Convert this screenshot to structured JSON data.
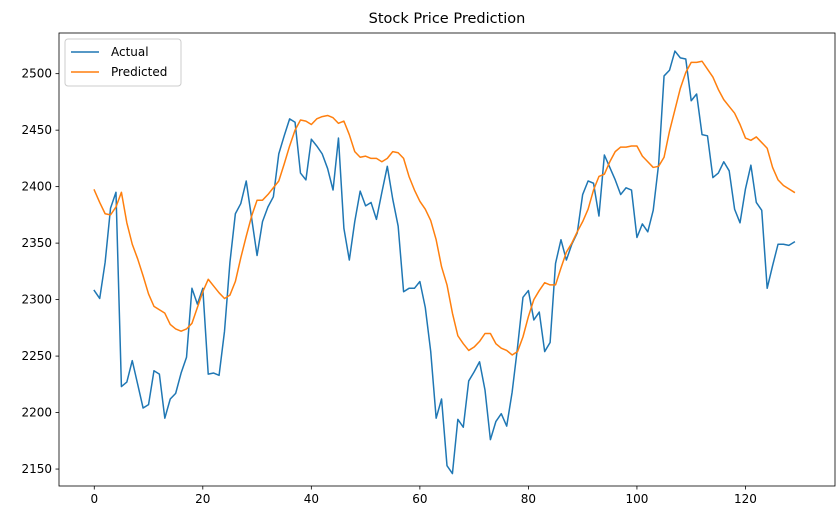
{
  "chart_data": {
    "type": "line",
    "title": "Stock Price Prediction",
    "xlabel": "",
    "ylabel": "",
    "xlim": [
      -6.5,
      136.5
    ],
    "ylim": [
      2135,
      2536
    ],
    "xticks": [
      0,
      20,
      40,
      60,
      80,
      100,
      120
    ],
    "yticks": [
      2150,
      2200,
      2250,
      2300,
      2350,
      2400,
      2450,
      2500
    ],
    "grid": false,
    "legend_position": "top-left",
    "series": [
      {
        "name": "Actual",
        "color": "#1f77b4",
        "x": [
          0,
          1,
          2,
          3,
          4,
          5,
          6,
          7,
          8,
          9,
          10,
          11,
          12,
          13,
          14,
          15,
          16,
          17,
          18,
          19,
          20,
          21,
          22,
          23,
          24,
          25,
          26,
          27,
          28,
          29,
          30,
          31,
          32,
          33,
          34,
          35,
          36,
          37,
          38,
          39,
          40,
          41,
          42,
          43,
          44,
          45,
          46,
          47,
          48,
          49,
          50,
          51,
          52,
          53,
          54,
          55,
          56,
          57,
          58,
          59,
          60,
          61,
          62,
          63,
          64,
          65,
          66,
          67,
          68,
          69,
          70,
          71,
          72,
          73,
          74,
          75,
          76,
          77,
          78,
          79,
          80,
          81,
          82,
          83,
          84,
          85,
          86,
          87,
          88,
          89,
          90,
          91,
          92,
          93,
          94,
          95,
          96,
          97,
          98,
          99,
          100,
          101,
          102,
          103,
          104,
          105,
          106,
          107,
          108,
          109,
          110,
          111,
          112,
          113,
          114,
          115,
          116,
          117,
          118,
          119,
          120,
          121,
          122,
          123,
          124,
          125,
          126,
          127,
          128,
          129
        ],
        "values": [
          2308,
          2301,
          2333,
          2381,
          2395,
          2223,
          2227,
          2246,
          2225,
          2204,
          2207,
          2237,
          2234,
          2195,
          2212,
          2217,
          2235,
          2249,
          2310,
          2296,
          2310,
          2234,
          2235,
          2233,
          2272,
          2333,
          2376,
          2385,
          2405,
          2372,
          2339,
          2369,
          2382,
          2391,
          2429,
          2445,
          2460,
          2457,
          2412,
          2406,
          2442,
          2436,
          2429,
          2416,
          2397,
          2443,
          2363,
          2335,
          2369,
          2396,
          2383,
          2386,
          2371,
          2395,
          2418,
          2389,
          2365,
          2307,
          2310,
          2310,
          2316,
          2293,
          2254,
          2195,
          2212,
          2153,
          2146,
          2194,
          2187,
          2228,
          2236,
          2245,
          2220,
          2176,
          2192,
          2199,
          2188,
          2218,
          2258,
          2302,
          2308,
          2282,
          2289,
          2254,
          2262,
          2332,
          2353,
          2335,
          2349,
          2359,
          2393,
          2405,
          2403,
          2374,
          2428,
          2417,
          2406,
          2393,
          2399,
          2397,
          2355,
          2367,
          2360,
          2379,
          2420,
          2498,
          2503,
          2520,
          2514,
          2513,
          2476,
          2482,
          2446,
          2445,
          2408,
          2412,
          2422,
          2414,
          2380,
          2368,
          2398,
          2419,
          2386,
          2379,
          2310,
          2330,
          2349,
          2349,
          2348,
          2351
        ]
      },
      {
        "name": "Predicted",
        "color": "#ff7f0e",
        "x": [
          0,
          1,
          2,
          3,
          4,
          5,
          6,
          7,
          8,
          9,
          10,
          11,
          12,
          13,
          14,
          15,
          16,
          17,
          18,
          19,
          20,
          21,
          22,
          23,
          24,
          25,
          26,
          27,
          28,
          29,
          30,
          31,
          32,
          33,
          34,
          35,
          36,
          37,
          38,
          39,
          40,
          41,
          42,
          43,
          44,
          45,
          46,
          47,
          48,
          49,
          50,
          51,
          52,
          53,
          54,
          55,
          56,
          57,
          58,
          59,
          60,
          61,
          62,
          63,
          64,
          65,
          66,
          67,
          68,
          69,
          70,
          71,
          72,
          73,
          74,
          75,
          76,
          77,
          78,
          79,
          80,
          81,
          82,
          83,
          84,
          85,
          86,
          87,
          88,
          89,
          90,
          91,
          92,
          93,
          94,
          95,
          96,
          97,
          98,
          99,
          100,
          101,
          102,
          103,
          104,
          105,
          106,
          107,
          108,
          109,
          110,
          111,
          112,
          113,
          114,
          115,
          116,
          117,
          118,
          119,
          120,
          121,
          122,
          123,
          124,
          125,
          126,
          127,
          128,
          129
        ],
        "values": [
          2397,
          2386,
          2376,
          2375,
          2382,
          2395,
          2368,
          2349,
          2336,
          2321,
          2305,
          2294,
          2291,
          2288,
          2278,
          2274,
          2272,
          2274,
          2279,
          2293,
          2307,
          2318,
          2312,
          2306,
          2301,
          2304,
          2316,
          2337,
          2356,
          2374,
          2388,
          2388,
          2393,
          2399,
          2405,
          2420,
          2436,
          2450,
          2459,
          2458,
          2455,
          2460,
          2462,
          2463,
          2461,
          2456,
          2458,
          2446,
          2431,
          2426,
          2427,
          2425,
          2425,
          2422,
          2425,
          2431,
          2430,
          2425,
          2409,
          2397,
          2387,
          2380,
          2370,
          2353,
          2329,
          2313,
          2288,
          2268,
          2261,
          2255,
          2258,
          2263,
          2270,
          2270,
          2261,
          2257,
          2255,
          2251,
          2254,
          2267,
          2285,
          2300,
          2308,
          2315,
          2313,
          2313,
          2328,
          2342,
          2350,
          2360,
          2369,
          2380,
          2397,
          2409,
          2411,
          2422,
          2431,
          2435,
          2435,
          2436,
          2436,
          2427,
          2422,
          2417,
          2418,
          2426,
          2449,
          2468,
          2487,
          2501,
          2510,
          2510,
          2511,
          2504,
          2497,
          2486,
          2477,
          2471,
          2465,
          2455,
          2443,
          2441,
          2444,
          2439,
          2434,
          2417,
          2406,
          2401,
          2398,
          2395
        ]
      }
    ]
  }
}
